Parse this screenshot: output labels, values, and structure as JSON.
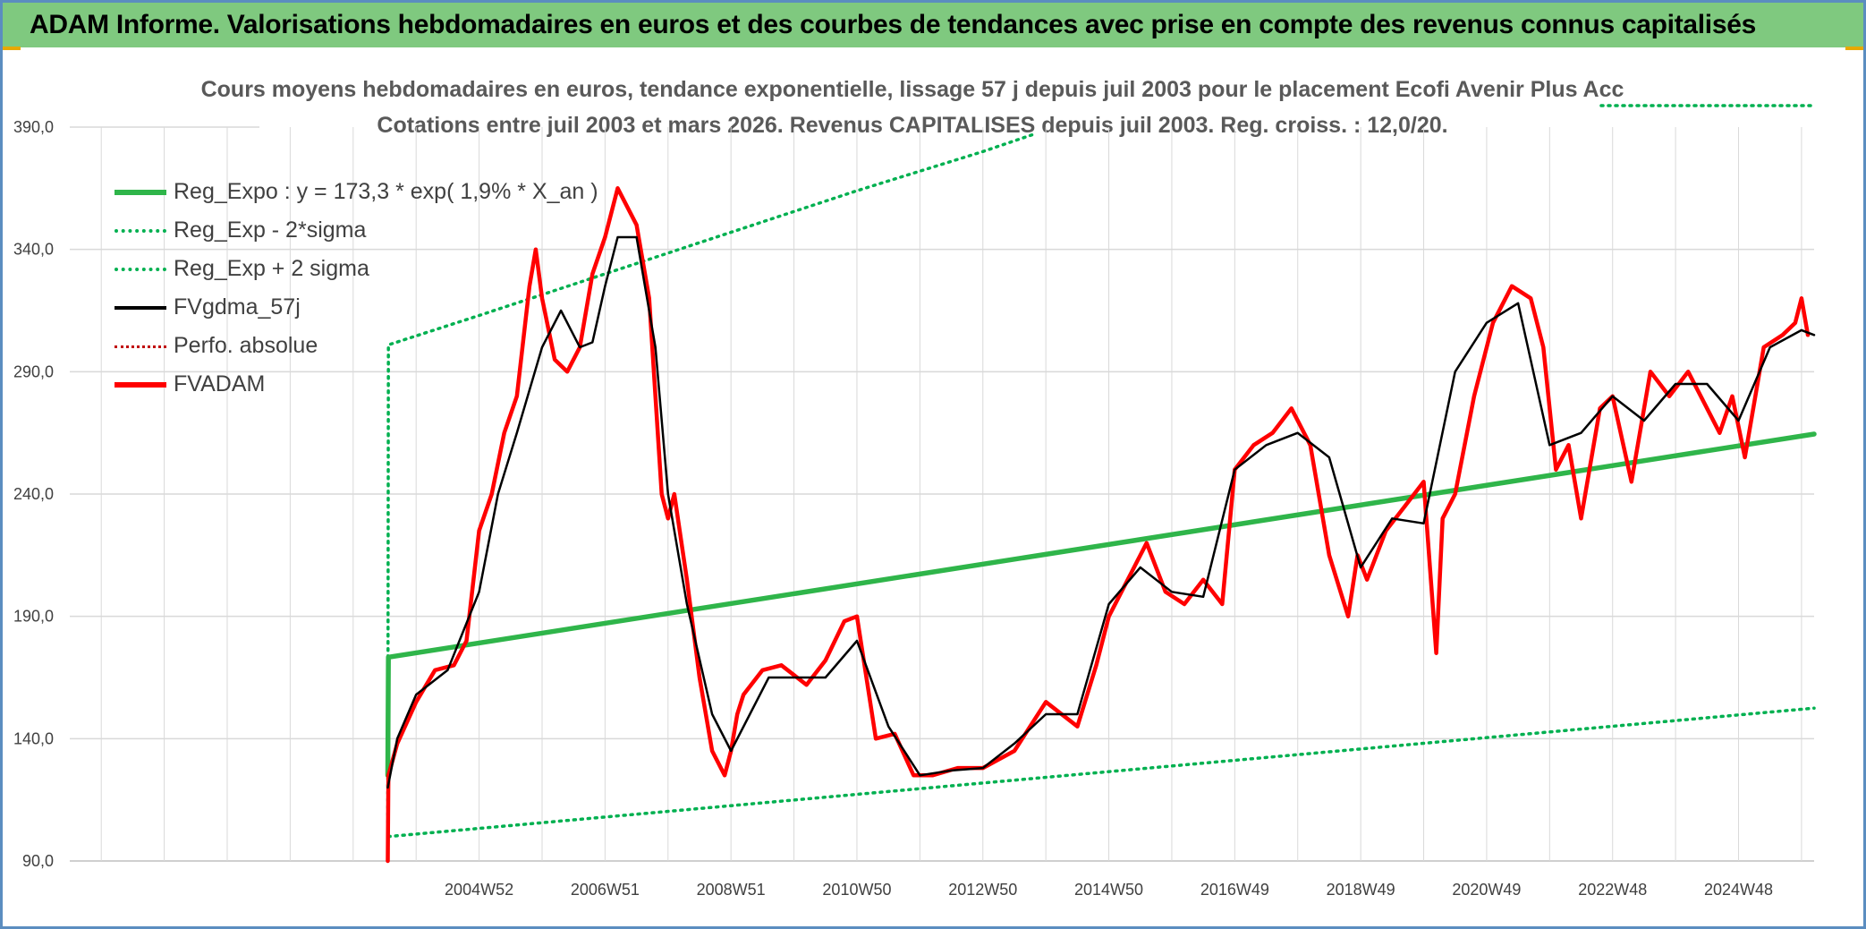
{
  "header": {
    "title": "ADAM Informe. Valorisations hebdomadaires en euros et des courbes de tendances avec prise en compte des revenus connus capitalisés"
  },
  "colors": {
    "header_bg": "#7fc97f",
    "green": "#00b050",
    "green_trend": "#2fb54a",
    "black": "#000000",
    "red": "#ff0000",
    "dark_red": "#c00000",
    "grid": "#d9d9d9"
  },
  "chart_data": {
    "type": "line",
    "title": "Cours moyens hebdomadaires en euros, tendance exponentielle, lissage 57 j depuis juil 2003 pour le placement Ecofi Avenir Plus Acc",
    "subtitle": "Cotations entre juil 2003 et mars 2026. Revenus CAPITALISES depuis juil 2003. Reg. croiss. : 12,0/20.",
    "xlabel": "",
    "ylabel": "",
    "ylim": [
      90,
      390
    ],
    "xlim": [
      1998.5,
      2026.2
    ],
    "grid": true,
    "legend_position": "top-left",
    "y_ticks": [
      "90,0",
      "140,0",
      "190,0",
      "240,0",
      "290,0",
      "340,0",
      "390,0"
    ],
    "x_ticks": [
      {
        "x": 2005.0,
        "label": "2004W52"
      },
      {
        "x": 2007.0,
        "label": "2006W51"
      },
      {
        "x": 2009.0,
        "label": "2008W51"
      },
      {
        "x": 2011.0,
        "label": "2010W50"
      },
      {
        "x": 2013.0,
        "label": "2012W50"
      },
      {
        "x": 2015.0,
        "label": "2014W50"
      },
      {
        "x": 2017.0,
        "label": "2016W49"
      },
      {
        "x": 2019.0,
        "label": "2018W49"
      },
      {
        "x": 2021.0,
        "label": "2020W49"
      },
      {
        "x": 2023.0,
        "label": "2022W48"
      },
      {
        "x": 2025.0,
        "label": "2024W48"
      }
    ],
    "series": [
      {
        "name": "Reg_Expo : y = 173,3 * exp( 1,9% *  X_an )",
        "style": "solid-thick",
        "x": [
          2003.55,
          2003.56,
          2026.2
        ],
        "y": [
          125,
          173.3,
          264.5
        ]
      },
      {
        "name": "Reg_Exp - 2*sigma",
        "style": "dotted",
        "x": [
          2003.56,
          2026.2
        ],
        "y": [
          100,
          152.5
        ]
      },
      {
        "name": "Reg_Exp + 2 sigma",
        "style": "dotted",
        "x": [
          2003.55,
          2003.56,
          2005.0,
          2007.0,
          2009.0,
          2011.0,
          2013.0,
          2013.8
        ],
        "y": [
          100,
          301,
          313,
          330,
          347,
          364,
          380,
          387
        ]
      },
      {
        "name": "FVgdma_57j",
        "style": "solid-thin",
        "x": [
          2003.55,
          2003.7,
          2004.0,
          2004.5,
          2005.0,
          2005.3,
          2005.6,
          2006.0,
          2006.3,
          2006.6,
          2006.8,
          2007.0,
          2007.2,
          2007.5,
          2007.8,
          2008.0,
          2008.3,
          2008.7,
          2009.0,
          2009.3,
          2009.6,
          2010.0,
          2010.5,
          2011.0,
          2011.5,
          2012.0,
          2012.5,
          2013.0,
          2013.5,
          2014.0,
          2014.5,
          2015.0,
          2015.5,
          2016.0,
          2016.5,
          2017.0,
          2017.5,
          2018.0,
          2018.5,
          2019.0,
          2019.5,
          2020.0,
          2020.5,
          2021.0,
          2021.5,
          2022.0,
          2022.5,
          2023.0,
          2023.5,
          2024.0,
          2024.5,
          2025.0,
          2025.5,
          2026.0,
          2026.2
        ],
        "y": [
          120,
          140,
          158,
          168,
          200,
          240,
          265,
          300,
          315,
          300,
          302,
          325,
          345,
          345,
          300,
          240,
          195,
          150,
          135,
          150,
          165,
          165,
          165,
          180,
          145,
          125,
          127,
          128,
          138,
          150,
          150,
          195,
          210,
          200,
          198,
          250,
          260,
          265,
          255,
          210,
          230,
          228,
          290,
          310,
          318,
          260,
          265,
          280,
          270,
          285,
          285,
          270,
          300,
          307,
          305
        ]
      },
      {
        "name": "Perfo. absolue",
        "style": "dotted-thin",
        "x": [],
        "y": []
      },
      {
        "name": "FVADAM",
        "style": "solid-thick",
        "x": [
          2003.55,
          2003.56,
          2003.7,
          2004.0,
          2004.3,
          2004.6,
          2004.8,
          2005.0,
          2005.2,
          2005.4,
          2005.6,
          2005.8,
          2005.9,
          2006.0,
          2006.2,
          2006.4,
          2006.6,
          2006.8,
          2007.0,
          2007.2,
          2007.5,
          2007.7,
          2007.9,
          2008.0,
          2008.1,
          2008.3,
          2008.5,
          2008.7,
          2008.9,
          2009.0,
          2009.1,
          2009.2,
          2009.5,
          2009.8,
          2010.2,
          2010.5,
          2010.8,
          2011.0,
          2011.3,
          2011.6,
          2011.9,
          2012.2,
          2012.6,
          2013.0,
          2013.5,
          2014.0,
          2014.5,
          2014.8,
          2015.0,
          2015.3,
          2015.6,
          2015.9,
          2016.2,
          2016.5,
          2016.8,
          2017.0,
          2017.3,
          2017.6,
          2017.9,
          2018.2,
          2018.5,
          2018.8,
          2018.95,
          2019.1,
          2019.4,
          2019.7,
          2020.0,
          2020.2,
          2020.3,
          2020.5,
          2020.8,
          2021.1,
          2021.4,
          2021.7,
          2021.9,
          2022.1,
          2022.3,
          2022.5,
          2022.8,
          2023.0,
          2023.3,
          2023.6,
          2023.9,
          2024.2,
          2024.5,
          2024.7,
          2024.9,
          2025.1,
          2025.4,
          2025.7,
          2025.9,
          2026.0,
          2026.1
        ],
        "y": [
          90,
          125,
          138,
          155,
          168,
          170,
          180,
          225,
          240,
          265,
          280,
          325,
          340,
          320,
          295,
          290,
          300,
          330,
          345,
          365,
          350,
          320,
          240,
          230,
          240,
          205,
          165,
          135,
          125,
          135,
          150,
          158,
          168,
          170,
          162,
          172,
          188,
          190,
          140,
          142,
          125,
          125,
          128,
          128,
          135,
          155,
          145,
          170,
          190,
          205,
          220,
          200,
          195,
          205,
          195,
          250,
          260,
          265,
          275,
          260,
          215,
          190,
          215,
          205,
          225,
          235,
          245,
          175,
          230,
          240,
          280,
          310,
          325,
          320,
          300,
          250,
          260,
          230,
          275,
          280,
          245,
          290,
          280,
          290,
          275,
          265,
          280,
          255,
          300,
          305,
          310,
          320,
          305
        ]
      }
    ]
  }
}
